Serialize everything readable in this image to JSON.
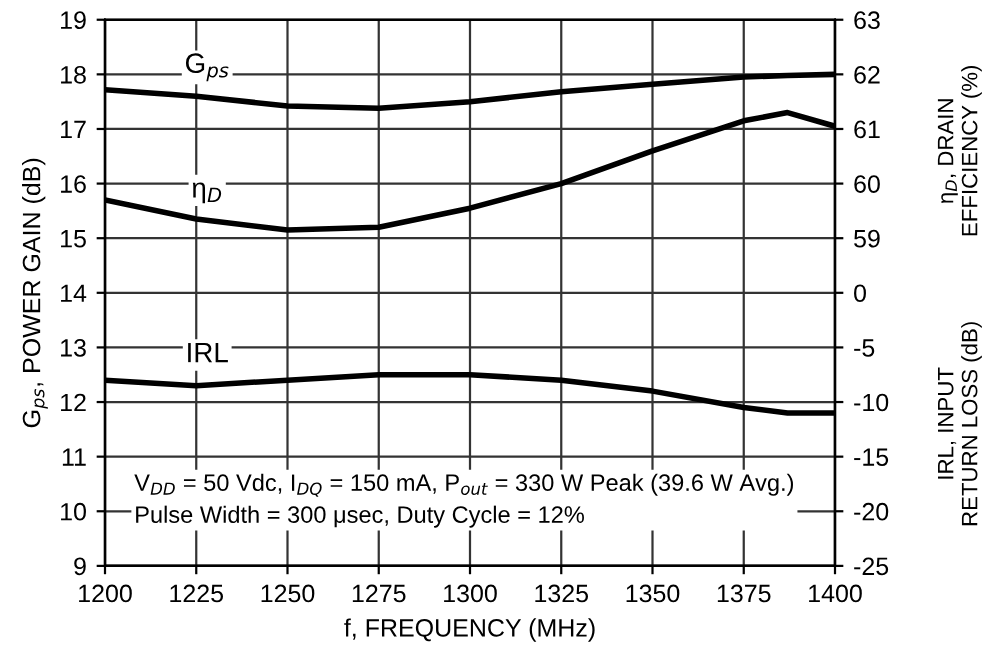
{
  "chart_data": {
    "type": "line",
    "xlabel": "f, FREQUENCY (MHz)",
    "ylabel": "G$_{ps}$, POWER GAIN (dB)",
    "y2label": "η$_{D}$, DRAIN EFFICIENCY (%)",
    "y3label": "IRL, INPUT RETURN LOSS (dB)",
    "x": [
      1200,
      1225,
      1250,
      1275,
      1300,
      1325,
      1350,
      1375,
      1387,
      1400
    ],
    "series": [
      {
        "name": "G$_{ps}$",
        "color": "#000000",
        "values": [
          17.72,
          17.6,
          17.42,
          17.38,
          17.5,
          17.68,
          17.82,
          17.95,
          17.98,
          18.0
        ]
      },
      {
        "name": "η$_{D}$",
        "color": "#000000",
        "axis": "y2",
        "values": [
          59.7,
          59.35,
          59.15,
          59.2,
          59.55,
          60.0,
          60.6,
          61.15,
          61.3,
          61.05
        ]
      },
      {
        "name": "IRL",
        "color": "#000000",
        "axis": "y3",
        "values": [
          -8.0,
          -8.5,
          -8.0,
          -7.5,
          -7.5,
          -8.0,
          -9.0,
          -10.5,
          -11.0,
          -11.0
        ]
      }
    ],
    "xlim": [
      1200,
      1400
    ],
    "xticks": [
      1200,
      1225,
      1250,
      1275,
      1300,
      1325,
      1350,
      1375,
      1400
    ],
    "ylim": [
      9,
      19
    ],
    "yticks": [
      9,
      10,
      11,
      12,
      13,
      14,
      15,
      16,
      17,
      18,
      19
    ],
    "y2lim": [
      53,
      63
    ],
    "y2ticks": [
      59,
      60,
      61,
      62,
      63
    ],
    "y3lim": [
      -25,
      25
    ],
    "y3ticks": [
      0,
      -5,
      -10,
      -15,
      -20,
      -25
    ],
    "annotations": [
      "V$_{DD}$ = 50 Vdc, I$_{DQ}$ = 150 mA, P$_{out}$ = 330 W Peak (39.6 W Avg.)",
      "Pulse Width = 300 μsec, Duty Cycle = 12%"
    ],
    "grid": true,
    "legend": false,
    "marker": "none",
    "line_style": "solid"
  }
}
